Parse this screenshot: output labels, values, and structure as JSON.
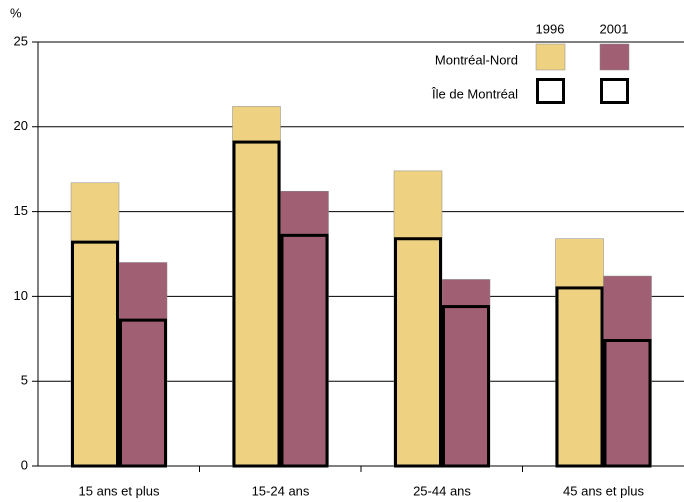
{
  "chart_data": {
    "type": "bar-overlay",
    "y_unit": "%",
    "categories": [
      "15 ans et plus",
      "15-24 ans",
      "25-44 ans",
      "45 ans et plus"
    ],
    "years": [
      {
        "name": "1996",
        "color": "#eed282"
      },
      {
        "name": "2001",
        "color": "#a15f74"
      }
    ],
    "series": [
      {
        "name": "Montréal-Nord",
        "style": "filled",
        "values": [
          [
            16.7,
            12.0
          ],
          [
            21.2,
            16.2
          ],
          [
            17.4,
            11.0
          ],
          [
            13.4,
            11.2
          ]
        ]
      },
      {
        "name": "Île de Montréal",
        "style": "outline",
        "color": "#000000",
        "values": [
          [
            13.2,
            8.6
          ],
          [
            19.1,
            13.6
          ],
          [
            13.4,
            9.4
          ],
          [
            10.5,
            7.4
          ]
        ]
      }
    ],
    "ylim": [
      0,
      25
    ],
    "yticks": [
      0,
      5,
      10,
      15,
      20,
      25
    ],
    "grid": true
  }
}
